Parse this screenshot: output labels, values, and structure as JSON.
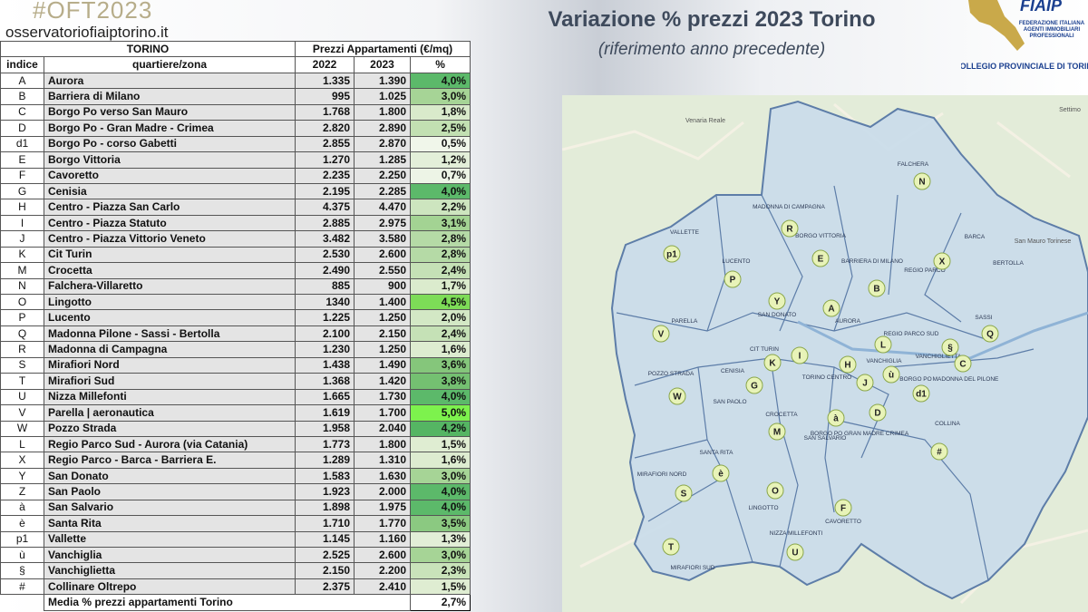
{
  "header": {
    "hashtag": "#OFT2023",
    "website": "osservatoriofiaiptorino.it",
    "title": "Variazione % prezzi 2023 Torino",
    "subtitle": "(riferimento anno precedente)"
  },
  "logo": {
    "name": "FIAIP",
    "lines": [
      "FEDERAZIONE ITALIANA",
      "AGENTI IMMOBILIARI",
      "PROFESSIONALI"
    ],
    "collegio": "COLLEGIO PROVINCIALE DI TORINO"
  },
  "table": {
    "group_headers": [
      "TORINO",
      "Prezzi Appartamenti (€/mq)"
    ],
    "columns": [
      "indice",
      "quartiere/zona",
      "2022",
      "2023",
      "%"
    ],
    "rows": [
      [
        "A",
        "Aurora",
        "1.335",
        "1.390",
        "4,0%"
      ],
      [
        "B",
        "Barriera di Milano",
        "995",
        "1.025",
        "3,0%"
      ],
      [
        "C",
        "Borgo Po verso San Mauro",
        "1.768",
        "1.800",
        "1,8%"
      ],
      [
        "D",
        "Borgo Po - Gran Madre - Crimea",
        "2.820",
        "2.890",
        "2,5%"
      ],
      [
        "d1",
        "Borgo Po - corso Gabetti",
        "2.855",
        "2.870",
        "0,5%"
      ],
      [
        "E",
        "Borgo Vittoria",
        "1.270",
        "1.285",
        "1,2%"
      ],
      [
        "F",
        "Cavoretto",
        "2.235",
        "2.250",
        "0,7%"
      ],
      [
        "G",
        "Cenisia",
        "2.195",
        "2.285",
        "4,0%"
      ],
      [
        "H",
        "Centro - Piazza San Carlo",
        "4.375",
        "4.470",
        "2,2%"
      ],
      [
        "I",
        "Centro - Piazza Statuto",
        "2.885",
        "2.975",
        "3,1%"
      ],
      [
        "J",
        "Centro - Piazza Vittorio Veneto",
        "3.482",
        "3.580",
        "2,8%"
      ],
      [
        "K",
        "Cit Turin",
        "2.530",
        "2.600",
        "2,8%"
      ],
      [
        "M",
        "Crocetta",
        "2.490",
        "2.550",
        "2,4%"
      ],
      [
        "N",
        "Falchera-Villaretto",
        "885",
        "900",
        "1,7%"
      ],
      [
        "O",
        "Lingotto",
        "1340",
        "1.400",
        "4,5%"
      ],
      [
        "P",
        "Lucento",
        "1.225",
        "1.250",
        "2,0%"
      ],
      [
        "Q",
        "Madonna Pilone - Sassi - Bertolla",
        "2.100",
        "2.150",
        "2,4%"
      ],
      [
        "R",
        "Madonna di Campagna",
        "1.230",
        "1.250",
        "1,6%"
      ],
      [
        "S",
        "Mirafiori Nord",
        "1.438",
        "1.490",
        "3,6%"
      ],
      [
        "T",
        "Mirafiori Sud",
        "1.368",
        "1.420",
        "3,8%"
      ],
      [
        "U",
        "Nizza Millefonti",
        "1.665",
        "1.730",
        "4,0%"
      ],
      [
        "V",
        "Parella | aeronautica",
        "1.619",
        "1.700",
        "5,0%"
      ],
      [
        "W",
        "Pozzo Strada",
        "1.958",
        "2.040",
        "4,2%"
      ],
      [
        "L",
        "Regio Parco Sud - Aurora (via Catania)",
        "1.773",
        "1.800",
        "1,5%"
      ],
      [
        "X",
        "Regio Parco - Barca - Barriera E.",
        "1.289",
        "1.310",
        "1,6%"
      ],
      [
        "Y",
        "San Donato",
        "1.583",
        "1.630",
        "3,0%"
      ],
      [
        "Z",
        "San Paolo",
        "1.923",
        "2.000",
        "4,0%"
      ],
      [
        "à",
        "San Salvario",
        "1.898",
        "1.975",
        "4,0%"
      ],
      [
        "è",
        "Santa Rita",
        "1.710",
        "1.770",
        "3,5%"
      ],
      [
        "p1",
        "Vallette",
        "1.145",
        "1.160",
        "1,3%"
      ],
      [
        "ù",
        "Vanchiglia",
        "2.525",
        "2.600",
        "3,0%"
      ],
      [
        "§",
        "Vanchiglietta",
        "2.150",
        "2.200",
        "2,3%"
      ],
      [
        "#",
        "Collinare Oltrepo",
        "2.375",
        "2.410",
        "1,5%"
      ]
    ],
    "row_colors": [
      "#5cb96a",
      "#a6d496",
      "#d9eacb",
      "#c2e0b2",
      "#f0f6ea",
      "#e3efd9",
      "#edf4e6",
      "#5cb96a",
      "#cde5bf",
      "#a3d393",
      "#b5daa6",
      "#b5daa6",
      "#c5e1b6",
      "#dbebcd",
      "#7ddc57",
      "#d3e8c5",
      "#c5e1b6",
      "#ddecd0",
      "#85c67b",
      "#74c071",
      "#5cb96a",
      "#7df24d",
      "#55b563",
      "#dfedd2",
      "#ddecd0",
      "#a6d496",
      "#5cb96a",
      "#5cb96a",
      "#8bc981",
      "#e2eed7",
      "#a6d496",
      "#c9e3ba",
      "#dfedd2"
    ],
    "footer": [
      "Media % prezzi appartamenti Torino",
      "2,7%"
    ]
  },
  "map": {
    "places": [
      "Venaria Reale",
      "Settimo",
      "San Mauro Torinese"
    ],
    "districts": [
      "VALLETTE",
      "LUCENTO",
      "MADONNA DI CAMPAGNA",
      "BORGO VITTORIA",
      "BARRIERA DI MILANO",
      "REGIO PARCO",
      "BARCA",
      "BERTOLLA",
      "FALCHERA",
      "PARELLA",
      "SAN DONATO",
      "AURORA",
      "REGIO PARCO SUD",
      "VANCHIGLIETTA",
      "SASSI",
      "CIT TURIN",
      "CENISIA",
      "POZZO STRADA",
      "SAN PAOLO",
      "TORINO CENTRO",
      "VANCHIGLIA",
      "BORGO PO",
      "MADONNA DEL PILONE",
      "CROCETTA",
      "SAN SALVARIO",
      "BORGO PO GRAN MADRE CRIMEA",
      "COLLINA",
      "SANTA RITA",
      "MIRAFIORI NORD",
      "LINGOTTO",
      "NIZZA MILLEFONTI",
      "CAVORETTO",
      "MIRAFIORI SUD"
    ],
    "markers": [
      "N",
      "p1",
      "R",
      "E",
      "X",
      "P",
      "Y",
      "B",
      "A",
      "V",
      "L",
      "§",
      "Q",
      "K",
      "I",
      "H",
      "ù",
      "J",
      "C",
      "d1",
      "G",
      "W",
      "D",
      "à",
      "M",
      "#",
      "è",
      "S",
      "O",
      "F",
      "T",
      "U"
    ]
  }
}
